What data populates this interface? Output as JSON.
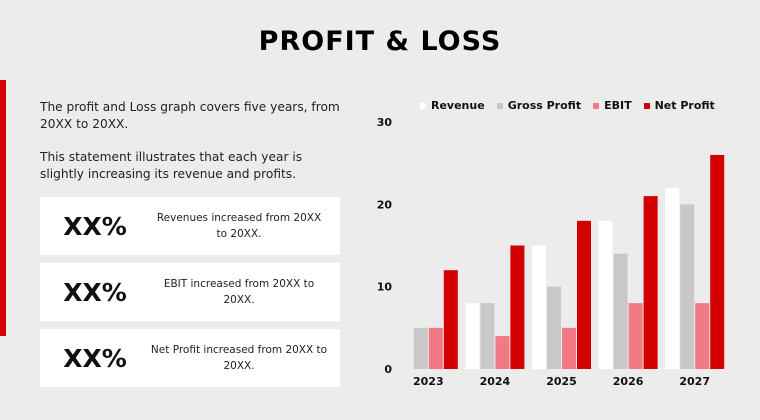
{
  "title": "PROFIT & LOSS",
  "intro": [
    "The profit and Loss graph covers five years, from 20XX to 20XX.",
    "This statement illustrates that each year is slightly increasing its revenue and profits."
  ],
  "cards": [
    {
      "value": "XX%",
      "text": "Revenues increased from 20XX to 20XX."
    },
    {
      "value": "XX%",
      "text": "EBIT increased from 20XX to 20XX."
    },
    {
      "value": "XX%",
      "text": "Net Profit increased from 20XX to 20XX."
    }
  ],
  "colors": {
    "accent": "#d40000",
    "background": "#ececec"
  },
  "chart_data": {
    "type": "bar",
    "categories": [
      "2023",
      "2024",
      "2025",
      "2026",
      "2027"
    ],
    "series": [
      {
        "name": "Revenue",
        "color": "#ffffff",
        "values": [
          0,
          8,
          15,
          18,
          22
        ]
      },
      {
        "name": "Gross Profit",
        "color": "#c8c8c8",
        "values": [
          5,
          8,
          10,
          14,
          20
        ]
      },
      {
        "name": "EBIT",
        "color": "#f27a85",
        "values": [
          5,
          4,
          5,
          8,
          8
        ]
      },
      {
        "name": "Net Profit",
        "color": "#d40000",
        "values": [
          12,
          15,
          18,
          21,
          26
        ]
      }
    ],
    "ylim": [
      0,
      30
    ],
    "yticks": [
      "0",
      "10",
      "20",
      "30"
    ],
    "grid": false,
    "legend": "top"
  }
}
